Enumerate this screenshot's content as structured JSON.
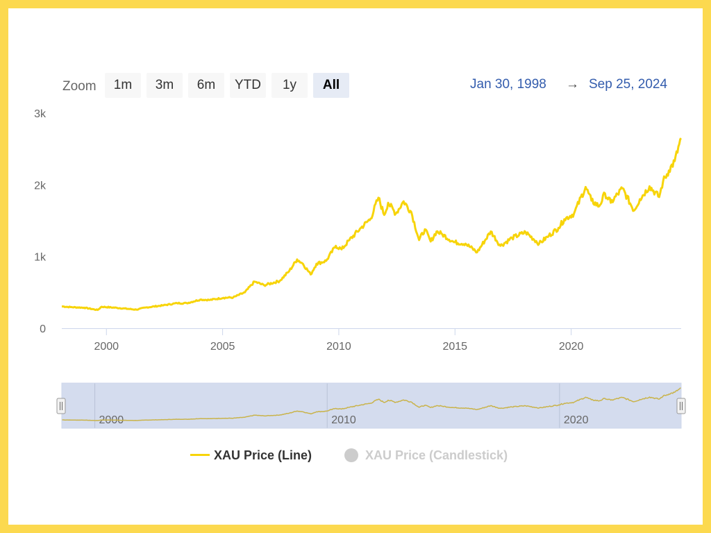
{
  "toolbar": {
    "zoom_label": "Zoom",
    "buttons": [
      "1m",
      "3m",
      "6m",
      "YTD",
      "1y",
      "All"
    ],
    "active_button": "All",
    "range_from": "Jan 30, 1998",
    "range_arrow": "→",
    "range_to": "Sep 25, 2024"
  },
  "legend": [
    {
      "label": "XAU Price (Line)",
      "color": "#f7d40a",
      "active": true
    },
    {
      "label": "XAU Price (Candlestick)",
      "color": "#cccccc",
      "active": false
    }
  ],
  "colors": {
    "line": "#f7d40a",
    "navigator_mask": "#ccd6eb",
    "range_text": "#335cad",
    "frame": "#fcd94f"
  },
  "chart_data": {
    "type": "line",
    "title": "",
    "xlabel": "",
    "ylabel": "",
    "xlim": [
      "1998-01-30",
      "2024-09-25"
    ],
    "ylim": [
      0,
      3000
    ],
    "y_ticks": [
      {
        "value": 0,
        "label": "0"
      },
      {
        "value": 1000,
        "label": "1k"
      },
      {
        "value": 2000,
        "label": "2k"
      },
      {
        "value": 3000,
        "label": "3k"
      }
    ],
    "x_ticks": [
      "2000",
      "2005",
      "2010",
      "2015",
      "2020"
    ],
    "navigator_ticks": [
      "2000",
      "2010",
      "2020"
    ],
    "grid": false,
    "legend_position": "bottom",
    "series": [
      {
        "name": "XAU Price (Line)",
        "points": [
          [
            "1998-01-30",
            305
          ],
          [
            "1998-06",
            295
          ],
          [
            "1999-01",
            287
          ],
          [
            "1999-08",
            255
          ],
          [
            "1999-10",
            300
          ],
          [
            "2000-06",
            285
          ],
          [
            "2001-04",
            260
          ],
          [
            "2001-09",
            290
          ],
          [
            "2002-06",
            320
          ],
          [
            "2003-01",
            350
          ],
          [
            "2003-06",
            350
          ],
          [
            "2004-01",
            400
          ],
          [
            "2004-06",
            395
          ],
          [
            "2005-01",
            425
          ],
          [
            "2005-06",
            430
          ],
          [
            "2005-12",
            500
          ],
          [
            "2006-05",
            650
          ],
          [
            "2006-10",
            600
          ],
          [
            "2007-06",
            660
          ],
          [
            "2007-11",
            800
          ],
          [
            "2008-03",
            960
          ],
          [
            "2008-06",
            900
          ],
          [
            "2008-10",
            750
          ],
          [
            "2009-01",
            900
          ],
          [
            "2009-06",
            940
          ],
          [
            "2009-11",
            1150
          ],
          [
            "2010-02",
            1100
          ],
          [
            "2010-06",
            1230
          ],
          [
            "2010-12",
            1400
          ],
          [
            "2011-05",
            1530
          ],
          [
            "2011-09",
            1820
          ],
          [
            "2011-12",
            1580
          ],
          [
            "2012-02",
            1750
          ],
          [
            "2012-06",
            1600
          ],
          [
            "2012-10",
            1770
          ],
          [
            "2013-02",
            1620
          ],
          [
            "2013-06",
            1230
          ],
          [
            "2013-09",
            1380
          ],
          [
            "2013-12",
            1210
          ],
          [
            "2014-03",
            1350
          ],
          [
            "2014-06",
            1310
          ],
          [
            "2014-12",
            1200
          ],
          [
            "2015-06",
            1180
          ],
          [
            "2015-12",
            1060
          ],
          [
            "2016-07",
            1350
          ],
          [
            "2016-12",
            1150
          ],
          [
            "2017-06",
            1260
          ],
          [
            "2018-01",
            1340
          ],
          [
            "2018-08",
            1180
          ],
          [
            "2019-01",
            1290
          ],
          [
            "2019-06",
            1400
          ],
          [
            "2019-09",
            1520
          ],
          [
            "2020-02",
            1600
          ],
          [
            "2020-08",
            1970
          ],
          [
            "2020-11",
            1780
          ],
          [
            "2021-03",
            1700
          ],
          [
            "2021-06",
            1880
          ],
          [
            "2021-09",
            1750
          ],
          [
            "2022-03",
            1950
          ],
          [
            "2022-09",
            1640
          ],
          [
            "2022-12",
            1800
          ],
          [
            "2023-05",
            1980
          ],
          [
            "2023-10",
            1830
          ],
          [
            "2023-12",
            2050
          ],
          [
            "2024-03",
            2200
          ],
          [
            "2024-06",
            2330
          ],
          [
            "2024-09-25",
            2650
          ]
        ]
      }
    ]
  }
}
